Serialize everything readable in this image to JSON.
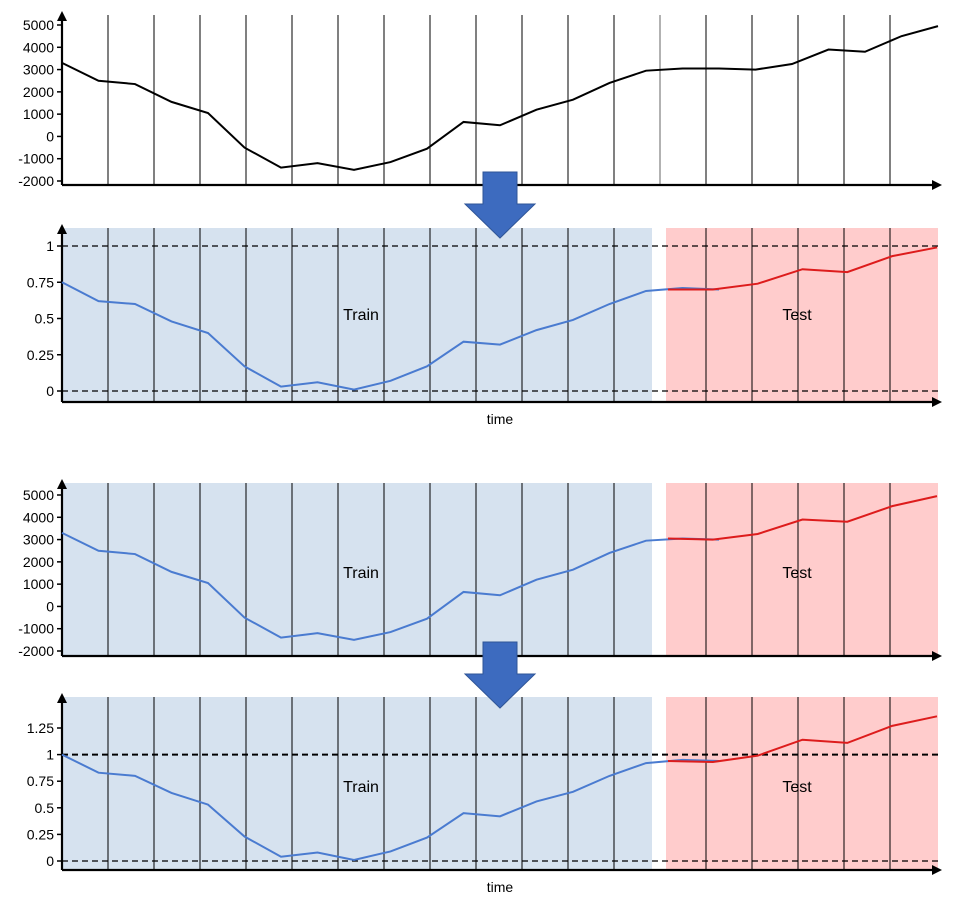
{
  "colors": {
    "train_bg": "#d6e2ef",
    "test_bg": "#ffcccc",
    "train_line": "#4a7bd0",
    "test_line": "#dd1c1c",
    "raw_line": "#000000",
    "arrow": "#3d6bbf"
  },
  "chart_data": [
    {
      "type": "line",
      "title": "",
      "xlabel": "",
      "ylabel": "",
      "yticks": [
        "5000",
        "4000",
        "3000",
        "2000",
        "1000",
        "0",
        "-1000",
        "-2000"
      ],
      "ylim": [
        -2000,
        5000
      ],
      "series": [
        {
          "values": [
            3300,
            2500,
            2350,
            1550,
            1050,
            -500,
            -1400,
            -1200,
            -1500,
            -1150,
            -550,
            650,
            500,
            1200,
            1650,
            2400,
            2950,
            3050,
            3050,
            3000,
            3250,
            3900,
            3800,
            4500,
            4950
          ]
        }
      ]
    },
    {
      "type": "line",
      "title": "",
      "xlabel": "time",
      "ylabel": "",
      "yticks": [
        "1",
        "0.75",
        "0.5",
        "0.25",
        "0"
      ],
      "ylim": [
        -0.05,
        1.1
      ],
      "reference_lines": [
        0,
        1
      ],
      "regions": {
        "train": "Train",
        "test": "Test"
      },
      "series": [
        {
          "values": [
            0.75,
            0.62,
            0.6,
            0.48,
            0.4,
            0.17,
            0.03,
            0.06,
            0.01,
            0.07,
            0.17,
            0.34,
            0.32,
            0.42,
            0.49,
            0.6,
            0.69,
            0.71,
            0.7
          ]
        },
        {
          "values": [
            0.7,
            0.7,
            0.74,
            0.84,
            0.82,
            0.93,
            0.99
          ]
        }
      ]
    },
    {
      "type": "line",
      "title": "",
      "xlabel": "",
      "ylabel": "",
      "yticks": [
        "5000",
        "4000",
        "3000",
        "2000",
        "1000",
        "0",
        "-1000",
        "-2000"
      ],
      "ylim": [
        -2000,
        5000
      ],
      "regions": {
        "train": "Train",
        "test": "Test"
      },
      "series": [
        {
          "values": [
            3300,
            2500,
            2350,
            1550,
            1050,
            -500,
            -1400,
            -1200,
            -1500,
            -1150,
            -550,
            650,
            500,
            1200,
            1650,
            2400,
            2950,
            3050,
            3000
          ]
        },
        {
          "values": [
            3050,
            3000,
            3250,
            3900,
            3800,
            4500,
            4950
          ]
        }
      ]
    },
    {
      "type": "line",
      "title": "",
      "xlabel": "time",
      "ylabel": "",
      "yticks": [
        "1.25",
        "1",
        "0.75",
        "0.5",
        "0.25",
        "0"
      ],
      "ylim": [
        -0.05,
        1.4
      ],
      "reference_lines": [
        0,
        1
      ],
      "regions": {
        "train": "Train",
        "test": "Test"
      },
      "series": [
        {
          "values": [
            1.0,
            0.83,
            0.8,
            0.64,
            0.53,
            0.23,
            0.04,
            0.08,
            0.01,
            0.09,
            0.22,
            0.45,
            0.42,
            0.56,
            0.65,
            0.8,
            0.92,
            0.95,
            0.94
          ]
        },
        {
          "values": [
            0.94,
            0.93,
            0.99,
            1.14,
            1.11,
            1.27,
            1.36
          ]
        }
      ]
    }
  ]
}
